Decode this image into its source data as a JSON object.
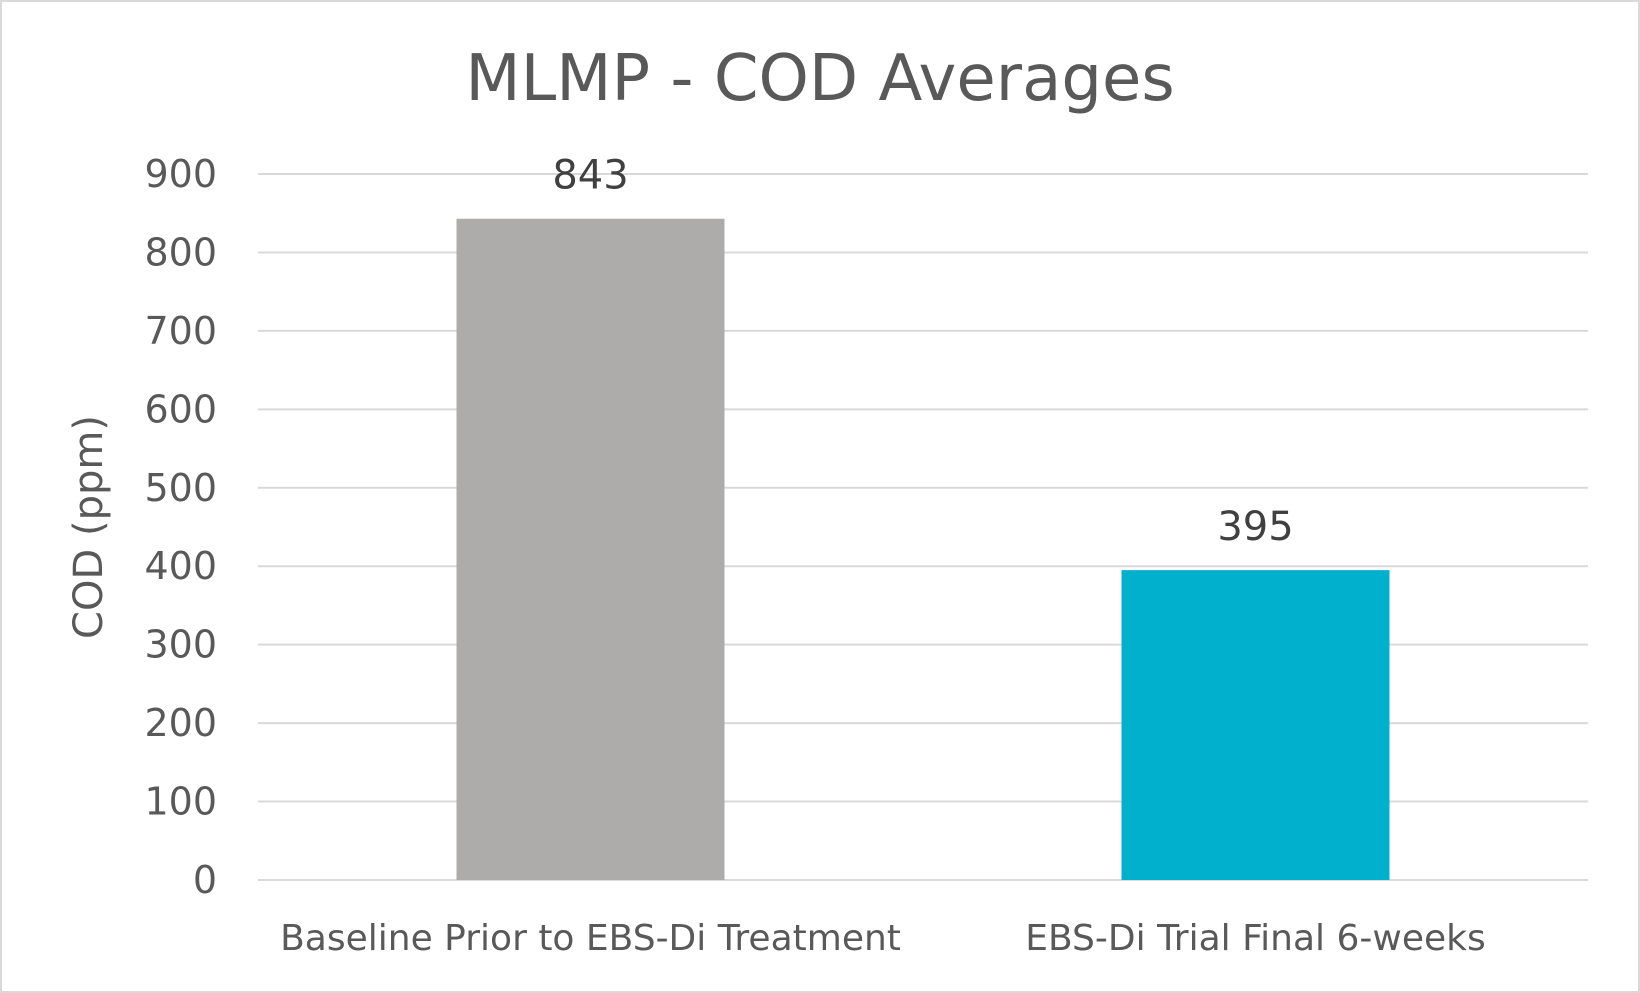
{
  "chart_data": {
    "type": "bar",
    "title": "MLMP - COD Averages",
    "xlabel": "",
    "ylabel": "COD (ppm)",
    "categories": [
      "Baseline Prior to EBS-Di Treatment",
      "EBS-Di Trial Final 6-weeks"
    ],
    "values": [
      843,
      395
    ],
    "data_labels": [
      "843",
      "395"
    ],
    "bar_colors": [
      "#AEABAB",
      "#00B0CD"
    ],
    "ylim": [
      0,
      900
    ],
    "yticks": [
      0,
      100,
      200,
      300,
      400,
      500,
      600,
      700,
      800,
      900
    ],
    "ytick_labels": [
      "0",
      "100",
      "200",
      "300",
      "400",
      "500",
      "600",
      "700",
      "800",
      "900"
    ],
    "grid": true,
    "gridline_color": "#D9D9D9",
    "text_color": "#595959",
    "legend": "none"
  }
}
